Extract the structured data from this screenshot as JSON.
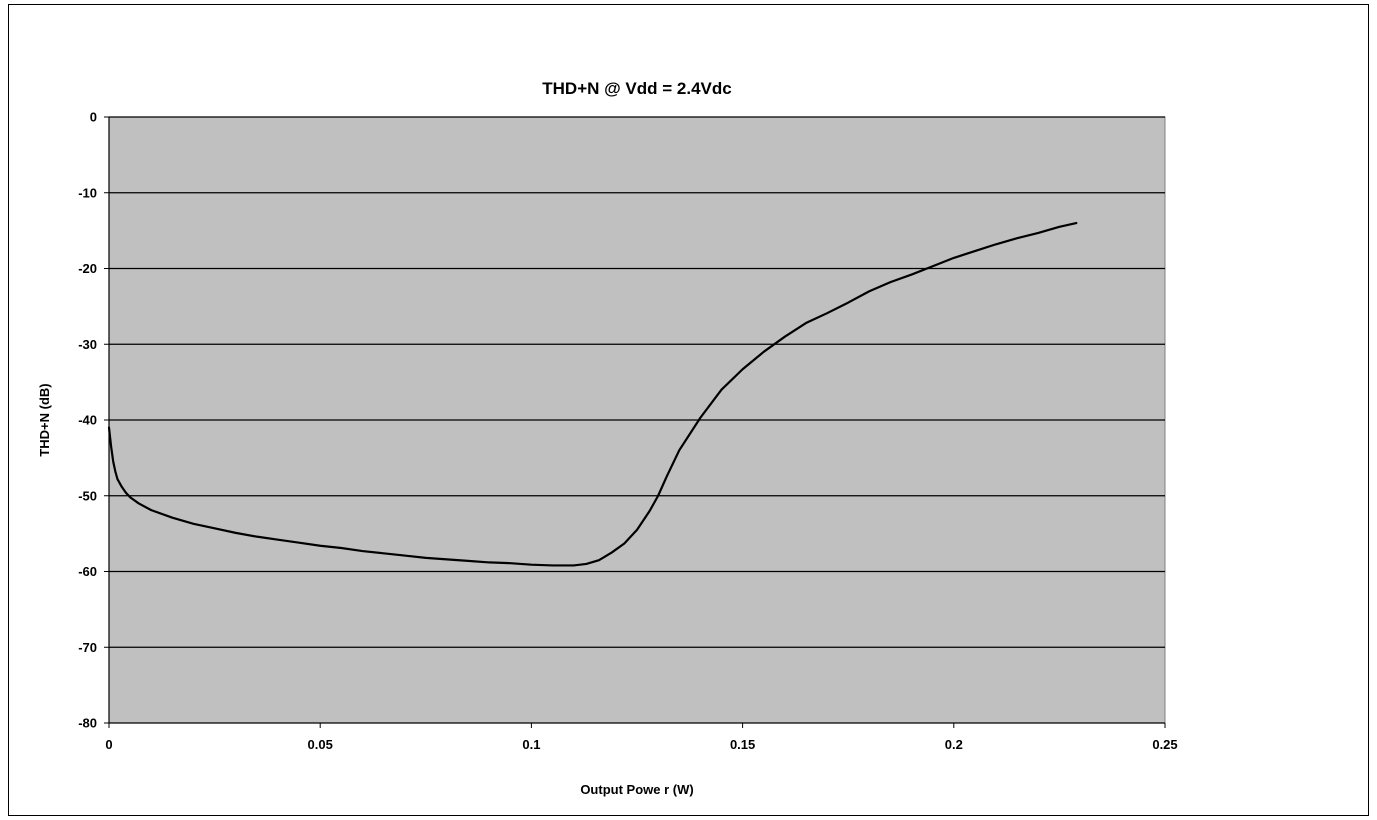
{
  "chart_data": {
    "type": "line",
    "title": "THD+N @ Vdd = 2.4Vdc",
    "xlabel": "Output Powe r (W)",
    "ylabel": "THD+N (dB)",
    "xlim": [
      0,
      0.25
    ],
    "ylim": [
      -80,
      0
    ],
    "x_ticks": [
      0,
      0.05,
      0.1,
      0.15,
      0.2,
      0.25
    ],
    "x_tick_labels": [
      "0",
      "0.05",
      "0.1",
      "0.15",
      "0.2",
      "0.25"
    ],
    "y_ticks": [
      0,
      -10,
      -20,
      -30,
      -40,
      -50,
      -60,
      -70,
      -80
    ],
    "y_tick_labels": [
      "0",
      "-10",
      "-20",
      "-30",
      "-40",
      "-50",
      "-60",
      "-70",
      "-80"
    ],
    "grid": "horizontal",
    "legend": "none",
    "colors": {
      "plot_background": "#c0c0c0",
      "grid_line": "#000000",
      "series_line": "#000000"
    },
    "series": [
      {
        "points": [
          [
            0.0,
            -41
          ],
          [
            0.0005,
            -43.5
          ],
          [
            0.001,
            -45.5
          ],
          [
            0.0015,
            -46.8
          ],
          [
            0.002,
            -47.8
          ],
          [
            0.003,
            -48.8
          ],
          [
            0.004,
            -49.6
          ],
          [
            0.005,
            -50.2
          ],
          [
            0.007,
            -51.0
          ],
          [
            0.01,
            -51.9
          ],
          [
            0.015,
            -52.9
          ],
          [
            0.02,
            -53.7
          ],
          [
            0.025,
            -54.3
          ],
          [
            0.03,
            -54.9
          ],
          [
            0.035,
            -55.4
          ],
          [
            0.04,
            -55.8
          ],
          [
            0.045,
            -56.2
          ],
          [
            0.05,
            -56.6
          ],
          [
            0.055,
            -56.9
          ],
          [
            0.06,
            -57.3
          ],
          [
            0.065,
            -57.6
          ],
          [
            0.07,
            -57.9
          ],
          [
            0.075,
            -58.2
          ],
          [
            0.08,
            -58.4
          ],
          [
            0.085,
            -58.6
          ],
          [
            0.09,
            -58.8
          ],
          [
            0.095,
            -58.9
          ],
          [
            0.1,
            -59.1
          ],
          [
            0.105,
            -59.2
          ],
          [
            0.11,
            -59.2
          ],
          [
            0.113,
            -59.0
          ],
          [
            0.116,
            -58.5
          ],
          [
            0.119,
            -57.5
          ],
          [
            0.122,
            -56.3
          ],
          [
            0.125,
            -54.5
          ],
          [
            0.128,
            -52.0
          ],
          [
            0.13,
            -50.0
          ],
          [
            0.132,
            -47.5
          ],
          [
            0.135,
            -44.0
          ],
          [
            0.14,
            -39.7
          ],
          [
            0.145,
            -36.0
          ],
          [
            0.15,
            -33.3
          ],
          [
            0.155,
            -31.0
          ],
          [
            0.16,
            -29.0
          ],
          [
            0.165,
            -27.2
          ],
          [
            0.17,
            -25.9
          ],
          [
            0.175,
            -24.5
          ],
          [
            0.18,
            -23.0
          ],
          [
            0.185,
            -21.8
          ],
          [
            0.19,
            -20.8
          ],
          [
            0.195,
            -19.7
          ],
          [
            0.2,
            -18.6
          ],
          [
            0.205,
            -17.7
          ],
          [
            0.21,
            -16.8
          ],
          [
            0.215,
            -16.0
          ],
          [
            0.22,
            -15.3
          ],
          [
            0.225,
            -14.5
          ],
          [
            0.229,
            -14.0
          ]
        ]
      }
    ]
  }
}
